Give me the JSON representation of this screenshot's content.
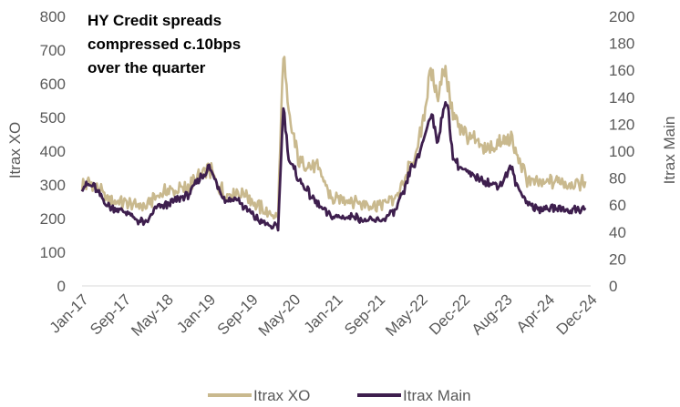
{
  "chart_data": {
    "type": "line",
    "annotation": [
      "HY Credit spreads",
      "compressed c.10bps",
      "over the quarter"
    ],
    "y_left": {
      "label": "Itrax XO",
      "range": [
        0,
        800
      ],
      "ticks": [
        0,
        100,
        200,
        300,
        400,
        500,
        600,
        700,
        800
      ]
    },
    "y_right": {
      "label": "Itrax Main",
      "range": [
        0,
        200
      ],
      "ticks": [
        0,
        20,
        40,
        60,
        80,
        100,
        120,
        140,
        160,
        180,
        200
      ]
    },
    "x_ticks": [
      "Jan-17",
      "Sep-17",
      "May-18",
      "Jan-19",
      "Sep-19",
      "May-20",
      "Jan-21",
      "Sep-21",
      "May-22",
      "Dec-22",
      "Aug-23",
      "Apr-24",
      "Dec-24"
    ],
    "x_range": [
      "2017-01",
      "2025-01"
    ],
    "gridlines": false,
    "legend_position": "bottom",
    "series": [
      {
        "name": "Itrax XO",
        "axis": "left",
        "color": "#C9B98E",
        "points": [
          [
            "2017-01",
            300
          ],
          [
            "2017-03",
            305
          ],
          [
            "2017-05",
            270
          ],
          [
            "2017-07",
            250
          ],
          [
            "2017-09",
            245
          ],
          [
            "2017-11",
            240
          ],
          [
            "2018-01",
            235
          ],
          [
            "2018-03",
            270
          ],
          [
            "2018-05",
            280
          ],
          [
            "2018-07",
            285
          ],
          [
            "2018-09",
            290
          ],
          [
            "2018-11",
            320
          ],
          [
            "2019-01",
            350
          ],
          [
            "2019-02",
            320
          ],
          [
            "2019-04",
            270
          ],
          [
            "2019-06",
            280
          ],
          [
            "2019-08",
            270
          ],
          [
            "2019-10",
            240
          ],
          [
            "2019-12",
            215
          ],
          [
            "2020-02",
            210
          ],
          [
            "2020-03",
            700
          ],
          [
            "2020-04",
            500
          ],
          [
            "2020-06",
            370
          ],
          [
            "2020-08",
            360
          ],
          [
            "2020-10",
            340
          ],
          [
            "2020-12",
            260
          ],
          [
            "2021-02",
            255
          ],
          [
            "2021-04",
            255
          ],
          [
            "2021-06",
            245
          ],
          [
            "2021-08",
            240
          ],
          [
            "2021-10",
            245
          ],
          [
            "2021-12",
            260
          ],
          [
            "2022-02",
            310
          ],
          [
            "2022-03",
            370
          ],
          [
            "2022-04",
            370
          ],
          [
            "2022-06",
            560
          ],
          [
            "2022-07",
            640
          ],
          [
            "2022-08",
            560
          ],
          [
            "2022-09",
            630
          ],
          [
            "2022-10",
            610
          ],
          [
            "2022-11",
            500
          ],
          [
            "2022-12",
            480
          ],
          [
            "2023-02",
            440
          ],
          [
            "2023-04",
            420
          ],
          [
            "2023-06",
            410
          ],
          [
            "2023-08",
            420
          ],
          [
            "2023-10",
            440
          ],
          [
            "2023-11",
            390
          ],
          [
            "2024-01",
            320
          ],
          [
            "2024-03",
            300
          ],
          [
            "2024-05",
            310
          ],
          [
            "2024-07",
            310
          ],
          [
            "2024-09",
            300
          ],
          [
            "2024-11",
            305
          ],
          [
            "2024-12",
            310
          ]
        ]
      },
      {
        "name": "Itrax Main",
        "axis": "right",
        "color": "#3E1F4E",
        "points": [
          [
            "2017-01",
            73
          ],
          [
            "2017-03",
            75
          ],
          [
            "2017-05",
            63
          ],
          [
            "2017-07",
            57
          ],
          [
            "2017-09",
            56
          ],
          [
            "2017-11",
            50
          ],
          [
            "2018-01",
            46
          ],
          [
            "2018-03",
            58
          ],
          [
            "2018-05",
            60
          ],
          [
            "2018-07",
            64
          ],
          [
            "2018-09",
            67
          ],
          [
            "2018-11",
            78
          ],
          [
            "2019-01",
            88
          ],
          [
            "2019-02",
            80
          ],
          [
            "2019-04",
            64
          ],
          [
            "2019-06",
            65
          ],
          [
            "2019-08",
            57
          ],
          [
            "2019-10",
            50
          ],
          [
            "2019-12",
            45
          ],
          [
            "2020-02",
            43
          ],
          [
            "2020-03",
            135
          ],
          [
            "2020-04",
            95
          ],
          [
            "2020-06",
            78
          ],
          [
            "2020-08",
            68
          ],
          [
            "2020-10",
            58
          ],
          [
            "2020-12",
            52
          ],
          [
            "2021-02",
            51
          ],
          [
            "2021-04",
            52
          ],
          [
            "2021-06",
            49
          ],
          [
            "2021-08",
            48
          ],
          [
            "2021-10",
            50
          ],
          [
            "2021-12",
            55
          ],
          [
            "2022-02",
            72
          ],
          [
            "2022-03",
            88
          ],
          [
            "2022-04",
            90
          ],
          [
            "2022-06",
            115
          ],
          [
            "2022-07",
            130
          ],
          [
            "2022-08",
            105
          ],
          [
            "2022-09",
            128
          ],
          [
            "2022-10",
            135
          ],
          [
            "2022-11",
            95
          ],
          [
            "2022-12",
            90
          ],
          [
            "2023-02",
            82
          ],
          [
            "2023-04",
            80
          ],
          [
            "2023-06",
            76
          ],
          [
            "2023-08",
            75
          ],
          [
            "2023-10",
            88
          ],
          [
            "2023-11",
            75
          ],
          [
            "2024-01",
            62
          ],
          [
            "2024-03",
            57
          ],
          [
            "2024-05",
            57
          ],
          [
            "2024-07",
            58
          ],
          [
            "2024-09",
            56
          ],
          [
            "2024-11",
            57
          ],
          [
            "2024-12",
            58
          ]
        ]
      }
    ]
  }
}
